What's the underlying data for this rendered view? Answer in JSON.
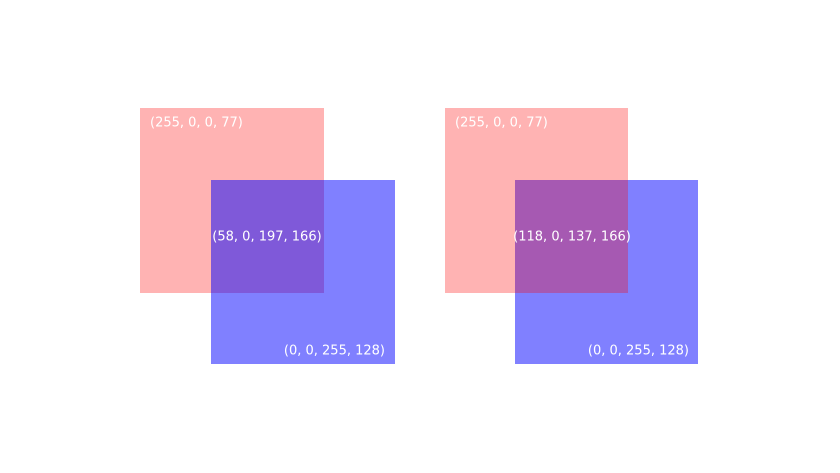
{
  "panels": [
    {
      "top_label": "(255, 0, 0, 77)",
      "overlap_label": "(58, 0, 197, 166)",
      "bottom_label": "(0, 0, 255, 128)"
    },
    {
      "top_label": "(255, 0, 0, 77)",
      "overlap_label": "(118, 0, 137, 166)",
      "bottom_label": "(0, 0, 255, 128)"
    }
  ]
}
